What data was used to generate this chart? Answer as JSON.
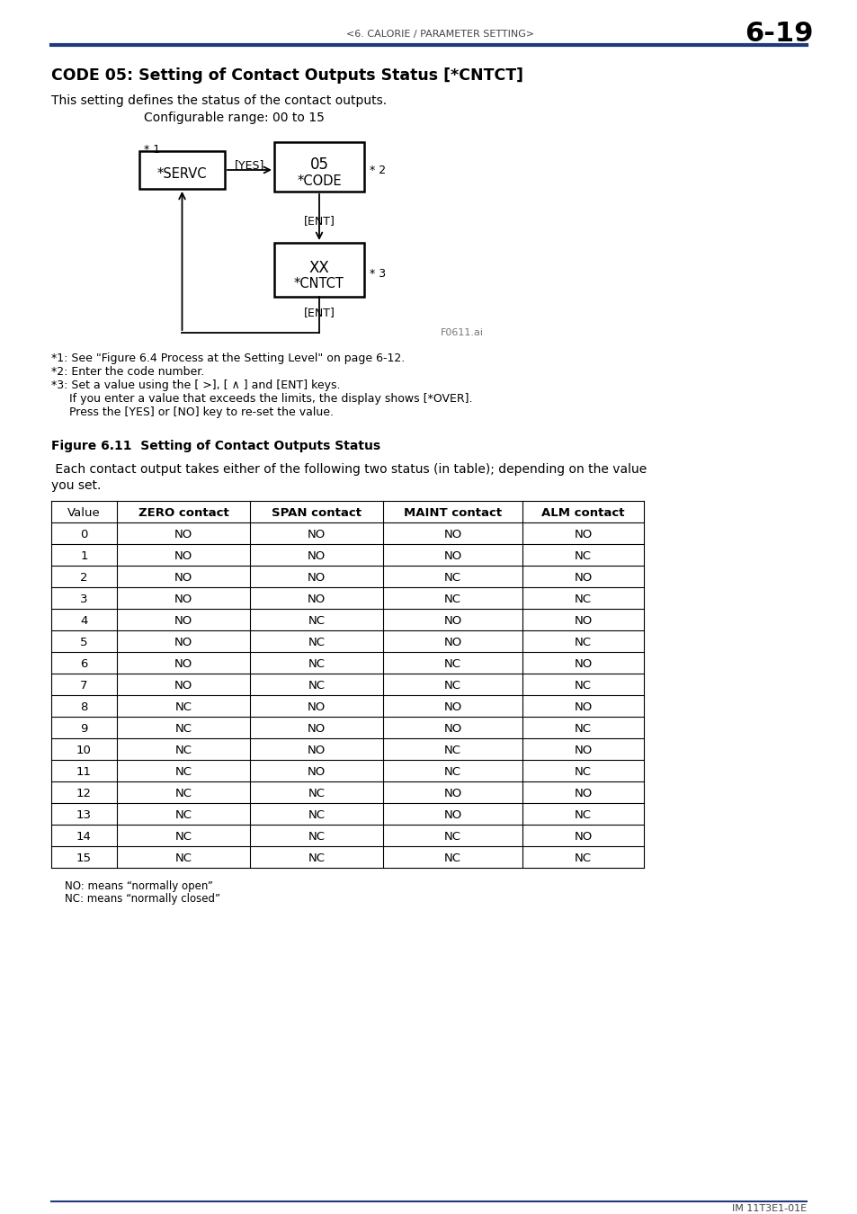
{
  "page_header_left": "<6. CALORIE / PARAMETER SETTING>",
  "page_header_right": "6-19",
  "header_line_color": "#1f3a7a",
  "title": "CODE 05: Setting of Contact Outputs Status [*CNTCT]",
  "desc1": "This setting defines the status of the contact outputs.",
  "desc2": "Configurable range: 00 to 15",
  "note1": "*1: See \"Figure 6.4 Process at the Setting Level\" on page 6-12.",
  "note2": "*2: Enter the code number.",
  "note3": "*3: Set a value using the [ >], [ ∧ ] and [ENT] keys.",
  "note3b": "     If you enter a value that exceeds the limits, the display shows [*OVER].",
  "note3c": "     Press the [YES] or [NO] key to re-set the value.",
  "fig_label": "Figure 6.11  Setting of Contact Outputs Status",
  "fig_watermark": "F0611.ai",
  "para_text1": " Each contact output takes either of the following two status (in table); depending on the value",
  "para_text2": "you set.",
  "table_headers": [
    "Value",
    "ZERO contact",
    "SPAN contact",
    "MAINT contact",
    "ALM contact"
  ],
  "table_data": [
    [
      "0",
      "NO",
      "NO",
      "NO",
      "NO"
    ],
    [
      "1",
      "NO",
      "NO",
      "NO",
      "NC"
    ],
    [
      "2",
      "NO",
      "NO",
      "NC",
      "NO"
    ],
    [
      "3",
      "NO",
      "NO",
      "NC",
      "NC"
    ],
    [
      "4",
      "NO",
      "NC",
      "NO",
      "NO"
    ],
    [
      "5",
      "NO",
      "NC",
      "NO",
      "NC"
    ],
    [
      "6",
      "NO",
      "NC",
      "NC",
      "NO"
    ],
    [
      "7",
      "NO",
      "NC",
      "NC",
      "NC"
    ],
    [
      "8",
      "NC",
      "NO",
      "NO",
      "NO"
    ],
    [
      "9",
      "NC",
      "NO",
      "NO",
      "NC"
    ],
    [
      "10",
      "NC",
      "NO",
      "NC",
      "NO"
    ],
    [
      "11",
      "NC",
      "NO",
      "NC",
      "NC"
    ],
    [
      "12",
      "NC",
      "NC",
      "NO",
      "NO"
    ],
    [
      "13",
      "NC",
      "NC",
      "NO",
      "NC"
    ],
    [
      "14",
      "NC",
      "NC",
      "NC",
      "NO"
    ],
    [
      "15",
      "NC",
      "NC",
      "NC",
      "NC"
    ]
  ],
  "footer_note1": "NO: means “normally open”",
  "footer_note2": "NC: means “normally closed”",
  "page_footer": "IM 11T3E1-01E",
  "bg_color": "#ffffff",
  "text_color": "#000000",
  "blue_color": "#1f3a7a"
}
